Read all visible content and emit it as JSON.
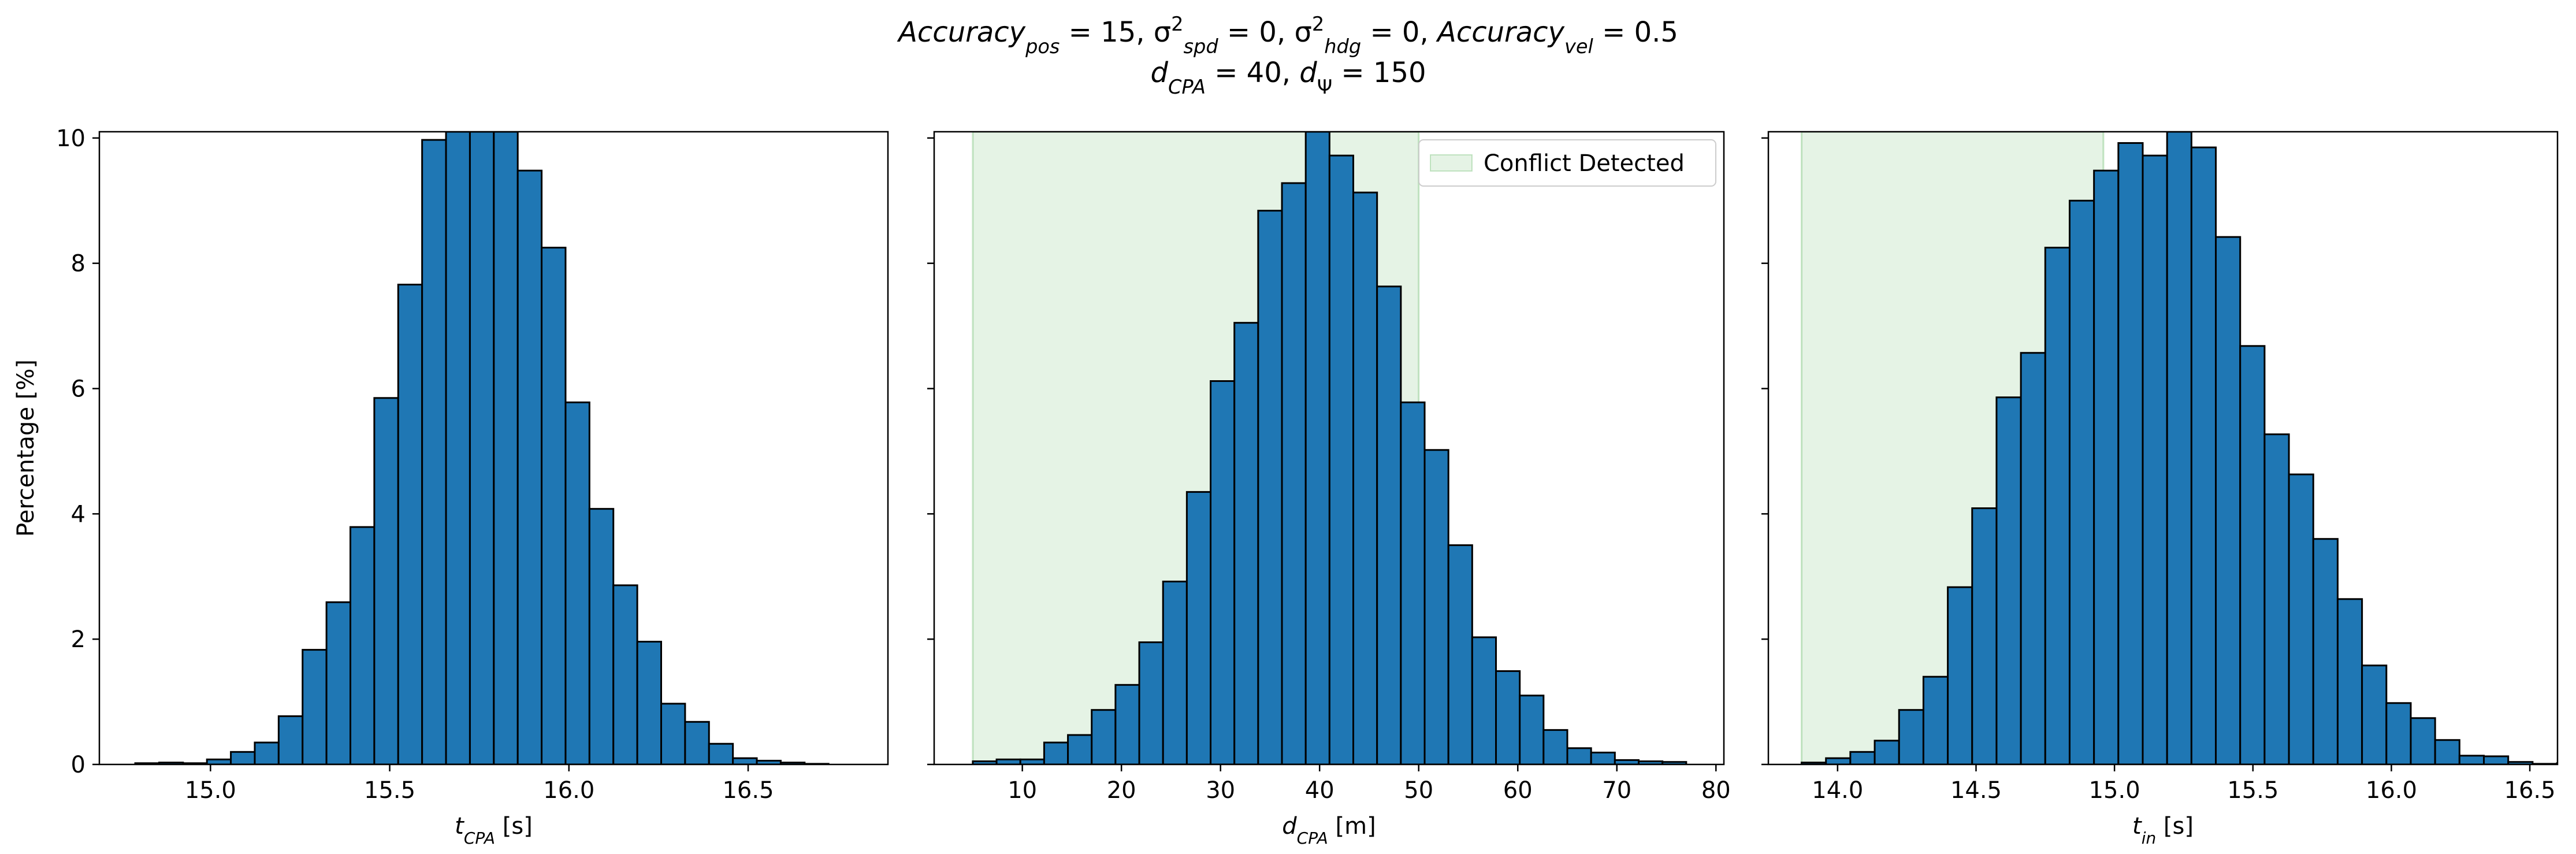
{
  "figure": {
    "title_line1_parts": [
      "Accuracy",
      "pos",
      " = 15, σ",
      "2",
      "spd",
      " = 0, σ",
      "2",
      "hdg",
      " = 0, ",
      "Accuracy",
      "vel",
      " = 0.5"
    ],
    "title_line2_parts": [
      "d",
      "CPA",
      " = 40, d",
      "Ψ",
      " = 150"
    ]
  },
  "chart_data": [
    {
      "type": "bar",
      "xlabel": "t_CPA [s]",
      "xlabel_main": "t",
      "xlabel_sub": "CPA",
      "xlabel_unit": " [s]",
      "ylabel": "Percentage [%]",
      "xlim": [
        14.69,
        16.89
      ],
      "ylim": [
        0,
        10.1
      ],
      "xticks": [
        15.0,
        15.5,
        16.0,
        16.5
      ],
      "xtick_labels": [
        "15.0",
        "15.5",
        "16.0",
        "16.5"
      ],
      "yticks": [
        0,
        2,
        4,
        6,
        8,
        10
      ],
      "ytick_labels": [
        "0",
        "2",
        "4",
        "6",
        "8",
        "10"
      ],
      "bins": {
        "start": 14.79,
        "width": 0.0667,
        "values": [
          0.02,
          0.03,
          0.02,
          0.08,
          0.2,
          0.35,
          0.77,
          1.83,
          2.59,
          3.79,
          5.85,
          7.66,
          9.97,
          10.1,
          10.1,
          10.1,
          9.48,
          8.25,
          5.78,
          4.08,
          2.86,
          1.96,
          0.97,
          0.68,
          0.33,
          0.1,
          0.06,
          0.03,
          0.01,
          0.0
        ]
      },
      "conflict_band": null,
      "legend": null
    },
    {
      "type": "bar",
      "xlabel": "d_CPA [m]",
      "xlabel_main": "d",
      "xlabel_sub": "CPA",
      "xlabel_unit": " [m]",
      "ylabel": "",
      "xlim": [
        1.1,
        80.8
      ],
      "ylim": [
        0,
        10.1
      ],
      "xticks": [
        10,
        20,
        30,
        40,
        50,
        60,
        70,
        80
      ],
      "xtick_labels": [
        "10",
        "20",
        "30",
        "40",
        "50",
        "60",
        "70",
        "80"
      ],
      "yticks": [
        0,
        2,
        4,
        6,
        8,
        10
      ],
      "ytick_labels": [
        "",
        "",
        "",
        "",
        "",
        ""
      ],
      "bins": {
        "start": 5.0,
        "width": 2.4,
        "values": [
          0.05,
          0.08,
          0.08,
          0.35,
          0.47,
          0.87,
          1.27,
          1.95,
          2.92,
          4.35,
          6.12,
          7.05,
          8.84,
          9.28,
          10.1,
          9.72,
          9.13,
          7.63,
          5.78,
          5.02,
          3.5,
          2.03,
          1.49,
          1.1,
          0.55,
          0.26,
          0.19,
          0.07,
          0.05,
          0.04
        ]
      },
      "conflict_band": {
        "x0": 5,
        "x1": 50,
        "color": "#2ca02c"
      },
      "legend": {
        "label": "Conflict Detected",
        "position": "upper right"
      }
    },
    {
      "type": "bar",
      "xlabel": "t_in [s]",
      "xlabel_main": "t",
      "xlabel_sub": "in",
      "xlabel_unit": " [s]",
      "ylabel": "",
      "xlim": [
        13.75,
        16.6
      ],
      "ylim": [
        0,
        10.1
      ],
      "xticks": [
        14.0,
        14.5,
        15.0,
        15.5,
        16.0,
        16.5
      ],
      "xtick_labels": [
        "14.0",
        "14.5",
        "15.0",
        "15.5",
        "16.0",
        "16.5"
      ],
      "yticks": [
        0,
        2,
        4,
        6,
        8,
        10
      ],
      "ytick_labels": [
        "",
        "",
        "",
        "",
        "",
        ""
      ],
      "bins": {
        "start": 13.87,
        "width": 0.088,
        "values": [
          0.03,
          0.1,
          0.2,
          0.38,
          0.87,
          1.4,
          2.83,
          4.09,
          5.86,
          6.57,
          8.25,
          9.0,
          9.48,
          9.92,
          9.72,
          10.1,
          9.85,
          8.42,
          6.68,
          5.27,
          4.63,
          3.6,
          2.64,
          1.58,
          0.98,
          0.74,
          0.39,
          0.14,
          0.13,
          0.04,
          0.01,
          0.02
        ]
      },
      "conflict_band": {
        "x0": 13.87,
        "x1": 14.96,
        "color": "#2ca02c"
      },
      "legend": null
    }
  ]
}
